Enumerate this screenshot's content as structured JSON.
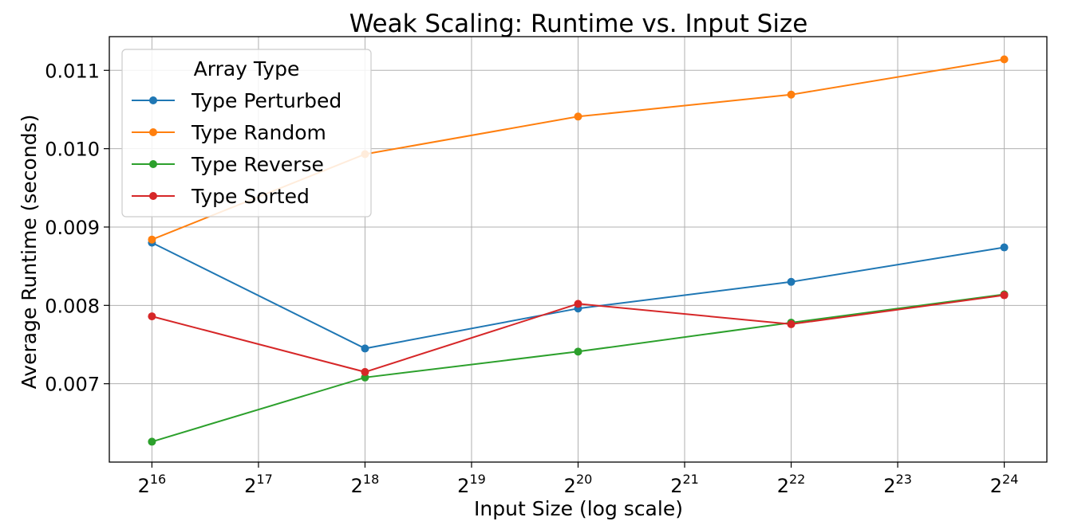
{
  "chart_data": {
    "type": "line",
    "title": "Weak Scaling: Runtime vs. Input Size",
    "xlabel": "Input Size (log scale)",
    "ylabel": "Average Runtime (seconds)",
    "x_scale": "log2",
    "x": [
      65536,
      262144,
      1048576,
      4194304,
      16777216
    ],
    "x_ticks": [
      {
        "base": "2",
        "exp": "16"
      },
      {
        "base": "2",
        "exp": "17"
      },
      {
        "base": "2",
        "exp": "18"
      },
      {
        "base": "2",
        "exp": "19"
      },
      {
        "base": "2",
        "exp": "20"
      },
      {
        "base": "2",
        "exp": "21"
      },
      {
        "base": "2",
        "exp": "22"
      },
      {
        "base": "2",
        "exp": "23"
      },
      {
        "base": "2",
        "exp": "24"
      }
    ],
    "y_ticks": [
      "0.007",
      "0.008",
      "0.009",
      "0.010",
      "0.011"
    ],
    "ylim": [
      0.006,
      0.01143
    ],
    "grid": true,
    "legend": {
      "title": "Array Type",
      "placement": "top-left"
    },
    "series": [
      {
        "name": "Type Perturbed",
        "color": "#1f77b4",
        "values": [
          0.0088,
          0.00745,
          0.00796,
          0.0083,
          0.00874
        ]
      },
      {
        "name": "Type Random",
        "color": "#ff7f0e",
        "values": [
          0.00884,
          0.00993,
          0.01041,
          0.01069,
          0.01114
        ]
      },
      {
        "name": "Type Reverse",
        "color": "#2ca02c",
        "values": [
          0.00626,
          0.00708,
          0.00741,
          0.00778,
          0.00814
        ]
      },
      {
        "name": "Type Sorted",
        "color": "#d62728",
        "values": [
          0.00786,
          0.00715,
          0.00802,
          0.00776,
          0.00813
        ]
      }
    ]
  }
}
